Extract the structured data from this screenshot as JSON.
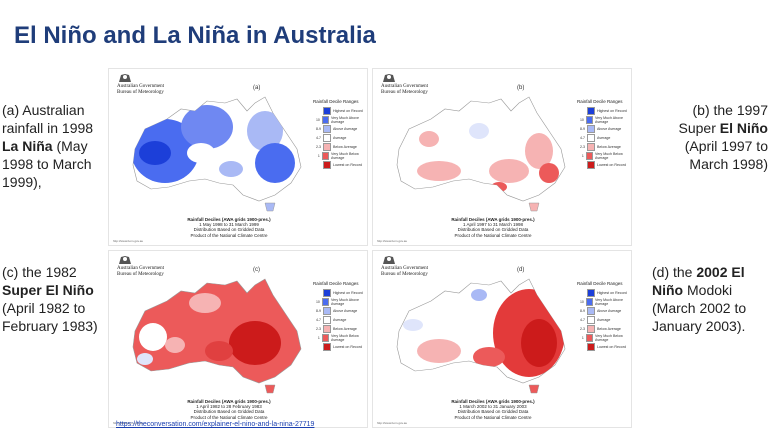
{
  "title": "El Niño and La Niña in Australia",
  "captions": {
    "a": {
      "pre": "(a) Australian rainfall in 1998 ",
      "bold": "La Niña",
      "post": " (May 1998 to March 1999),"
    },
    "b": {
      "pre": "(b) the 1997 Super ",
      "bold": "El Niño",
      "post": " (April 1997 to March 1998)"
    },
    "c": {
      "pre": "(c) the 1982 ",
      "bold": "Super El Niño",
      "post": " (April 1982 to February 1983)"
    },
    "d": {
      "pre": "(d) the ",
      "bold": "2002 El Niño",
      "post": " Modoki (March 2002 to January 2003)."
    }
  },
  "panels": [
    {
      "letter": "(a)",
      "agency_line1": "Australian Government",
      "agency_line2": "Bureau of Meteorology",
      "decile_title": "Rainfall Deciles (AWA grids 1900-pres.)",
      "period": "1 May 1998 to 31 March 1999",
      "note1": "Distribution Based on Gridded Data",
      "note2": "Product of the National Climate Centre",
      "web": "http://www.bom.gov.au"
    },
    {
      "letter": "(b)",
      "agency_line1": "Australian Government",
      "agency_line2": "Bureau of Meteorology",
      "decile_title": "Rainfall Deciles (AWA grids 1900-pres.)",
      "period": "1 April 1997 to 31 March 1998",
      "note1": "Distribution Based on Gridded Data",
      "note2": "Product of the National Climate Centre",
      "web": "http://www.bom.gov.au"
    },
    {
      "letter": "(c)",
      "agency_line1": "Australian Government",
      "agency_line2": "Bureau of Meteorology",
      "decile_title": "Rainfall Deciles (AWA grids 1900-pres.)",
      "period": "1 April 1982 to 28 February 1983",
      "note1": "Distribution Based on Gridded Data",
      "note2": "Product of the National Climate Centre",
      "web": "http://www.bom.gov.au"
    },
    {
      "letter": "(d)",
      "agency_line1": "Australian Government",
      "agency_line2": "Bureau of Meteorology",
      "decile_title": "Rainfall Deciles (AWA grids 1900-pres.)",
      "period": "1 March 2002 to 31 January 2003",
      "note1": "Distribution Based on Gridded Data",
      "note2": "Product of the National Climate Centre",
      "web": "http://www.bom.gov.au"
    }
  ],
  "legend": {
    "title": "Rainfall Decile Ranges",
    "items": [
      {
        "num": "",
        "label": "Highest on Record",
        "color": "#1c3fd9"
      },
      {
        "num": "10",
        "label": "Very Much Above Average",
        "color": "#4a6cf0"
      },
      {
        "num": "8-9",
        "label": "Above Average",
        "color": "#a9b9f5"
      },
      {
        "num": "4-7",
        "label": "Average",
        "color": "#ffffff"
      },
      {
        "num": "2-3",
        "label": "Below Average",
        "color": "#f6b3b3"
      },
      {
        "num": "1",
        "label": "Very Much Below Average",
        "color": "#ec5a5a"
      },
      {
        "num": "",
        "label": "Lowest on Record",
        "color": "#cc1b1b"
      }
    ]
  },
  "source_link": "https://theconversation.com/explainer-el-nino-and-la-nina-27719"
}
